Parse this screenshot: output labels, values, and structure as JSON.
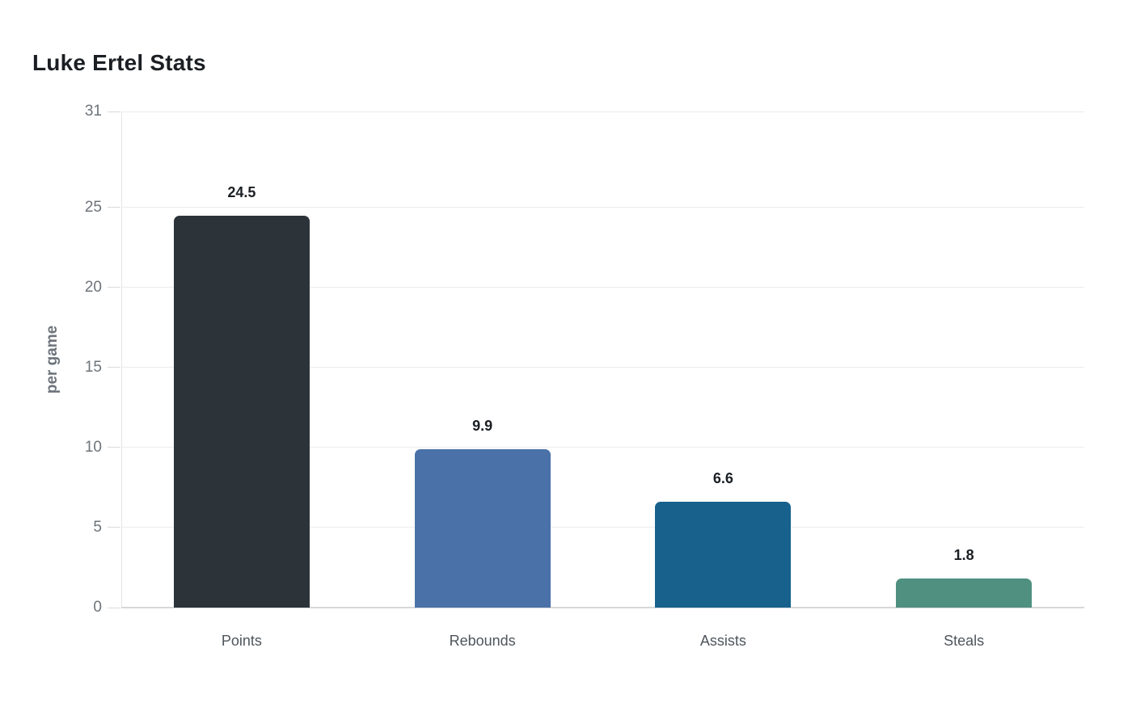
{
  "page": {
    "background": "#ffffff"
  },
  "chart_data": {
    "type": "bar",
    "title": "Luke Ertel Stats",
    "xlabel": "",
    "ylabel": "per game",
    "categories": [
      "Points",
      "Rebounds",
      "Assists",
      "Steals"
    ],
    "values": [
      24.5,
      9.9,
      6.6,
      1.8
    ],
    "value_labels": [
      "24.5",
      "9.9",
      "6.6",
      "1.8"
    ],
    "bar_colors": [
      "#2c343a",
      "#4a71a8",
      "#17618c",
      "#4f9080"
    ],
    "yticks": [
      0,
      5,
      10,
      15,
      20,
      25,
      31
    ],
    "ytick_labels": [
      "0",
      "5",
      "10",
      "15",
      "20",
      "25",
      "31"
    ],
    "ylim": [
      0,
      31
    ],
    "grid": true,
    "legend_position": "none"
  },
  "colors": {
    "title_text": "#1b1f23",
    "axis_label_text": "#6d737a",
    "category_text": "#4e555c",
    "value_label_text": "#1b1f23",
    "gridline": "#ececec",
    "baseline": "#d8d8d8",
    "tick": "#dadada"
  }
}
